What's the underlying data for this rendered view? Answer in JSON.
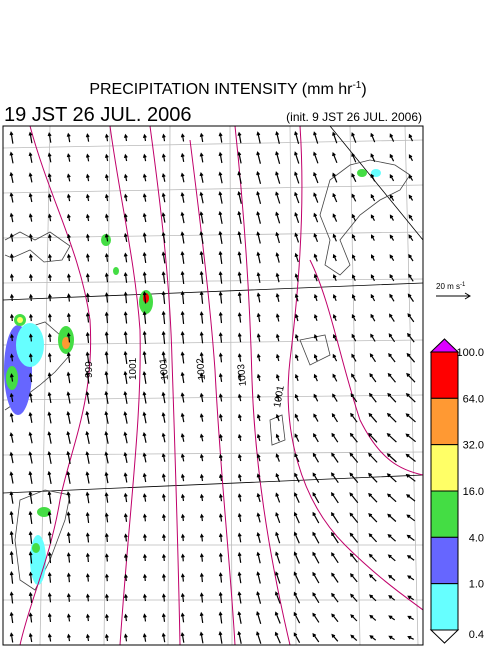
{
  "header": {
    "title": "PRECIPITATION INTENSITY (mm hr",
    "title_exp": "-1",
    "title_end": ")",
    "valid_time": "19 JST 26 JUL. 2006",
    "init_time": "(init. 9 JST 26 JUL. 2006)"
  },
  "wind_reference": {
    "label": "20 m s",
    "exp": "-1"
  },
  "contour_labels": [
    "999",
    "1001",
    "1001",
    "1002",
    "1003",
    "1001"
  ],
  "colorbar": {
    "labels": [
      "100.0",
      "64.0",
      "32.0",
      "16.0",
      "4.0",
      "1.0",
      "0.4"
    ],
    "colors": [
      "#dd00ff",
      "#ff0000",
      "#ff9933",
      "#ffff66",
      "#44dd44",
      "#6666ff",
      "#66ffff",
      "#ffffff"
    ]
  }
}
